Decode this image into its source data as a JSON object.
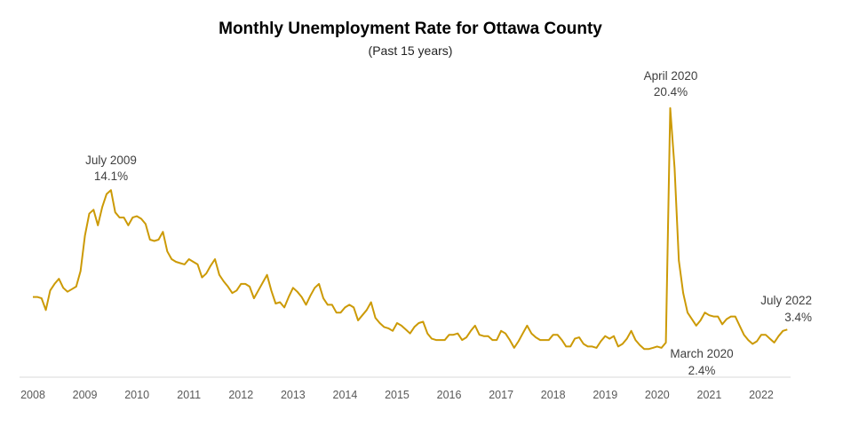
{
  "chart_data": {
    "type": "line",
    "title": "Monthly Unemployment Rate for Ottawa County",
    "subtitle": "(Past 15 years)",
    "xlabel": "",
    "ylabel": "",
    "x_start": "2008-01",
    "x_end": "2022-07",
    "frequency": "monthly",
    "x_tick_labels": [
      "2008",
      "2009",
      "2010",
      "2011",
      "2012",
      "2013",
      "2014",
      "2015",
      "2016",
      "2017",
      "2018",
      "2019",
      "2020",
      "2021",
      "2022"
    ],
    "grid": false,
    "legend": "none",
    "color": "#cc9a06",
    "series": [
      {
        "name": "Unemployment Rate (%)",
        "values": [
          5.9,
          5.9,
          5.8,
          4.9,
          6.4,
          6.9,
          7.3,
          6.6,
          6.3,
          6.5,
          6.7,
          7.9,
          10.6,
          12.3,
          12.6,
          11.4,
          12.8,
          13.8,
          14.1,
          12.4,
          12.0,
          12.0,
          11.4,
          12.0,
          12.1,
          11.9,
          11.5,
          10.3,
          10.2,
          10.3,
          10.9,
          9.4,
          8.8,
          8.6,
          8.5,
          8.4,
          8.8,
          8.6,
          8.4,
          7.4,
          7.7,
          8.3,
          8.8,
          7.6,
          7.1,
          6.7,
          6.2,
          6.4,
          6.9,
          6.9,
          6.7,
          5.8,
          6.4,
          7.0,
          7.6,
          6.4,
          5.4,
          5.5,
          5.1,
          5.9,
          6.6,
          6.3,
          5.9,
          5.3,
          6.0,
          6.6,
          6.9,
          5.8,
          5.3,
          5.3,
          4.7,
          4.7,
          5.1,
          5.3,
          5.1,
          4.1,
          4.5,
          4.9,
          5.5,
          4.3,
          3.9,
          3.6,
          3.5,
          3.3,
          3.9,
          3.7,
          3.4,
          3.1,
          3.6,
          3.9,
          4.0,
          3.1,
          2.7,
          2.6,
          2.6,
          2.6,
          3.0,
          3.0,
          3.1,
          2.6,
          2.8,
          3.3,
          3.7,
          3.0,
          2.9,
          2.9,
          2.6,
          2.6,
          3.3,
          3.1,
          2.6,
          2.0,
          2.5,
          3.1,
          3.7,
          3.1,
          2.8,
          2.6,
          2.6,
          2.6,
          3.0,
          3.0,
          2.6,
          2.1,
          2.1,
          2.7,
          2.8,
          2.3,
          2.1,
          2.1,
          2.0,
          2.5,
          2.9,
          2.7,
          2.9,
          2.1,
          2.3,
          2.7,
          3.3,
          2.6,
          2.2,
          1.9,
          1.9,
          2.0,
          2.1,
          2.0,
          2.4,
          20.4,
          15.8,
          8.7,
          6.2,
          4.7,
          4.2,
          3.7,
          4.1,
          4.7,
          4.5,
          4.4,
          4.4,
          3.8,
          4.2,
          4.4,
          4.4,
          3.7,
          3.0,
          2.6,
          2.3,
          2.5,
          3.0,
          3.0,
          2.7,
          2.4,
          2.9,
          3.3,
          3.4
        ]
      }
    ],
    "annotations": [
      {
        "id": "jul2009",
        "month_index": 18,
        "line1": "July 2009",
        "line2": "14.1%"
      },
      {
        "id": "apr2020",
        "month_index": 147,
        "line1": "April 2020",
        "line2": "20.4%"
      },
      {
        "id": "mar2020",
        "month_index": 146,
        "line1": "March 2020",
        "line2": "2.4%"
      },
      {
        "id": "jul2022",
        "month_index": 174,
        "line1": "July 2022",
        "line2": "3.4%"
      }
    ]
  }
}
